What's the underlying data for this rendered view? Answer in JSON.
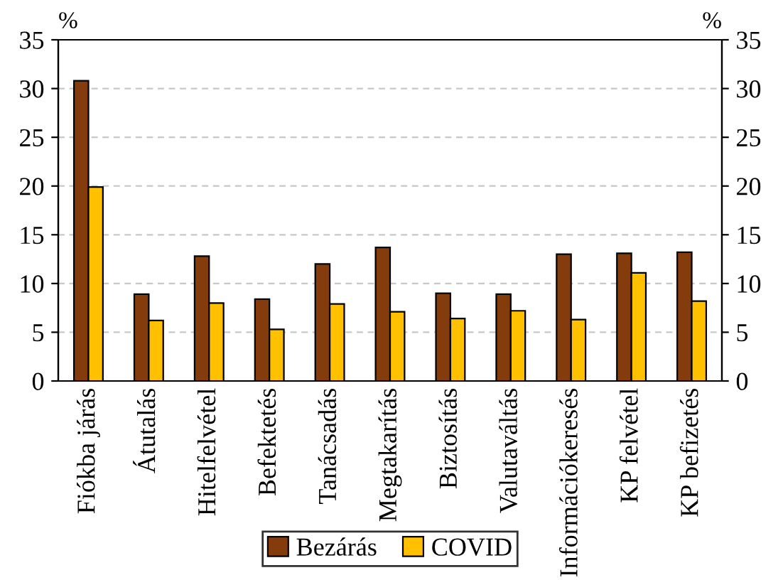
{
  "chart_data": {
    "type": "bar",
    "ylabel": "%",
    "y2label": "%",
    "categories": [
      "Fiókba járás",
      "Átutalás",
      "Hitelfelvétel",
      "Befektetés",
      "Tanácsadás",
      "Megtakarítás",
      "Biztosítás",
      "Valutaváltás",
      "Információkeresés",
      "KP felvétel",
      "KP befizetés"
    ],
    "series": [
      {
        "name": "Bezárás",
        "color": "#843c0c",
        "values": [
          30.8,
          8.9,
          12.8,
          8.4,
          12.0,
          13.7,
          9.0,
          8.9,
          13.0,
          13.1,
          13.2
        ]
      },
      {
        "name": "COVID",
        "color": "#ffc000",
        "values": [
          19.9,
          6.2,
          8.0,
          5.3,
          7.9,
          7.1,
          6.4,
          7.2,
          6.3,
          11.1,
          8.2
        ]
      }
    ],
    "ylim": [
      0,
      35
    ],
    "yticks": [
      0,
      5,
      10,
      15,
      20,
      25,
      30,
      35
    ],
    "y2lim": [
      0,
      35
    ],
    "y2ticks": [
      0,
      5,
      10,
      15,
      20,
      25,
      30,
      35
    ],
    "grid": "y",
    "legend": "bottom"
  }
}
